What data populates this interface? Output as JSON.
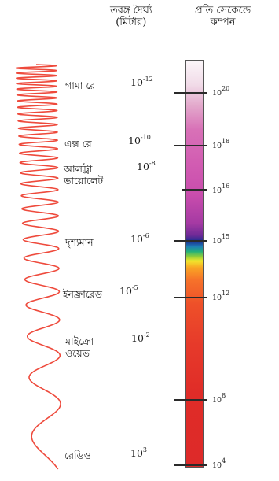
{
  "header": {
    "wavelength_line1": "তরঙ্গ দৈর্ঘ্য",
    "wavelength_line2": "(মিটার)",
    "frequency_line1": "প্রতি সেকেন্ডে",
    "frequency_line2": "কম্পন"
  },
  "bands": [
    {
      "label": "গামা রে",
      "wl_base": "10",
      "wl_exp": "-12"
    },
    {
      "label": "এক্স রে",
      "wl_base": "10",
      "wl_exp": "-10"
    },
    {
      "label": "আলট্রা ভায়োলেট",
      "label_line1": "আলট্রা",
      "label_line2": "ভায়োলেট",
      "wl_base": "10",
      "wl_exp": "-8"
    },
    {
      "label": "দৃশ্যমান",
      "wl_base": "10",
      "wl_exp": "-6"
    },
    {
      "label": "ইনফ্রারেড",
      "wl_base": "10",
      "wl_exp": "-5"
    },
    {
      "label": "মাইক্রো ওয়েভ",
      "label_line1": "মাইক্রো",
      "label_line2": "ওয়েভ",
      "wl_base": "10",
      "wl_exp": "-2"
    },
    {
      "label": "রেডিও",
      "wl_base": "10",
      "wl_exp": "3"
    }
  ],
  "frequencies": [
    {
      "base": "10",
      "exp": "20"
    },
    {
      "base": "10",
      "exp": "18"
    },
    {
      "base": "10",
      "exp": "16"
    },
    {
      "base": "10",
      "exp": "15"
    },
    {
      "base": "10",
      "exp": "12"
    },
    {
      "base": "10",
      "exp": "8"
    },
    {
      "base": "10",
      "exp": "4"
    }
  ],
  "colors": {
    "wave": "#ee4a3c",
    "ticks": "#2a2a2a",
    "text": "#1a1a1a"
  }
}
